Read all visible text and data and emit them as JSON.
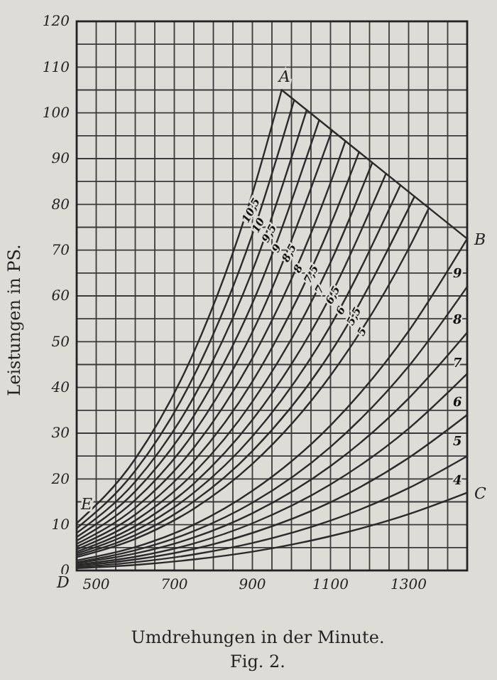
{
  "chart_data": {
    "type": "line",
    "xlabel": "Umdrehungen in der Minute.",
    "ylabel": "Leistungen in PS.",
    "annotations": [
      "Fig. 2.",
      {
        "text": "A",
        "x": 975,
        "y": 105
      },
      {
        "text": "B",
        "x": 1450,
        "y": 72.5
      },
      {
        "text": "C",
        "x": 1450,
        "y": 17
      },
      {
        "text": "D",
        "x": 450,
        "y": 0
      },
      {
        "text": "E",
        "x": 450,
        "y": 10.3
      }
    ],
    "xlim": [
      450,
      1450
    ],
    "xticks": [
      {
        "value": 450,
        "label": null
      },
      500,
      {
        "value": 550,
        "label": null
      },
      {
        "value": 600,
        "label": null
      },
      {
        "value": 650,
        "label": null
      },
      700,
      {
        "value": 750,
        "label": null
      },
      {
        "value": 800,
        "label": null
      },
      {
        "value": 850,
        "label": null
      },
      900,
      {
        "value": 950,
        "label": null
      },
      {
        "value": 1000,
        "label": null
      },
      {
        "value": 1050,
        "label": null
      },
      1100,
      {
        "value": 1150,
        "label": null
      },
      {
        "value": 1200,
        "label": null
      },
      {
        "value": 1250,
        "label": null
      },
      1300,
      {
        "value": 1350,
        "label": null
      },
      {
        "value": 1400,
        "label": null
      },
      {
        "value": 1450,
        "label": null
      }
    ],
    "ylim": [
      0,
      120
    ],
    "yticks": [
      0,
      {
        "value": 5,
        "label": null
      },
      10,
      {
        "value": 15,
        "label": null
      },
      20,
      {
        "value": 25,
        "label": null
      },
      30,
      {
        "value": 35,
        "label": null
      },
      40,
      {
        "value": 45,
        "label": null
      },
      50,
      {
        "value": 55,
        "label": null
      },
      60,
      {
        "value": 65,
        "label": null
      },
      70,
      {
        "value": 75,
        "label": null
      },
      80,
      {
        "value": 85,
        "label": null
      },
      90,
      {
        "value": 95,
        "label": null
      },
      100,
      {
        "value": 105,
        "label": null
      },
      110,
      {
        "value": 115,
        "label": null
      },
      120
    ],
    "grid": true,
    "legend": false,
    "marker": "none",
    "line_style": "solid",
    "series": [
      {
        "name": "10,5",
        "color": "#2a2a2a",
        "x": [
          450,
          600,
          750,
          900,
          975
        ],
        "values": [
          10.3,
          24.4,
          47.7,
          82.4,
          105
        ]
      },
      {
        "name": "10",
        "color": "#2a2a2a",
        "x": [
          450,
          600,
          750,
          900,
          1007
        ],
        "values": [
          9.2,
          21.8,
          42.5,
          73.5,
          102.8
        ]
      },
      {
        "name": "9,5",
        "color": "#2a2a2a",
        "x": [
          450,
          600,
          750,
          900,
          1039
        ],
        "values": [
          8.2,
          19.4,
          37.9,
          65.5,
          100.6
        ]
      },
      {
        "name": "9",
        "color": "#2a2a2a",
        "x": [
          450,
          600,
          750,
          900,
          1071
        ],
        "values": [
          7.3,
          17.3,
          33.8,
          58.4,
          98.4
        ]
      },
      {
        "name": "8,5",
        "color": "#2a2a2a",
        "x": [
          450,
          600,
          750,
          900,
          1104
        ],
        "values": [
          6.5,
          15.4,
          30.1,
          52.1,
          96.2
        ]
      },
      {
        "name": "8",
        "color": "#2a2a2a",
        "x": [
          450,
          600,
          750,
          900,
          1100,
          1138
        ],
        "values": [
          5.8,
          13.7,
          26.8,
          46.4,
          84.7,
          93.8
        ]
      },
      {
        "name": "7,5",
        "color": "#2a2a2a",
        "x": [
          450,
          600,
          750,
          900,
          1100,
          1173
        ],
        "values": [
          5.2,
          12.2,
          23.9,
          41.3,
          75.5,
          91.4
        ]
      },
      {
        "name": "7",
        "color": "#2a2a2a",
        "x": [
          450,
          600,
          750,
          900,
          1100,
          1207
        ],
        "values": [
          4.6,
          10.9,
          21.3,
          36.9,
          67.3,
          89.1
        ]
      },
      {
        "name": "6,5",
        "color": "#2a2a2a",
        "x": [
          450,
          600,
          750,
          900,
          1100,
          1242
        ],
        "values": [
          4.1,
          9.7,
          19.0,
          32.9,
          60.0,
          86.7
        ]
      },
      {
        "name": "6",
        "color": "#2a2a2a",
        "x": [
          450,
          600,
          750,
          900,
          1100,
          1279
        ],
        "values": [
          3.7,
          8.7,
          17.0,
          29.3,
          53.5,
          84.2
        ]
      },
      {
        "name": "5,5",
        "color": "#2a2a2a",
        "x": [
          450,
          600,
          750,
          900,
          1100,
          1315
        ],
        "values": [
          3.3,
          7.7,
          15.1,
          26.1,
          47.6,
          81.7
        ]
      },
      {
        "name": "5",
        "color": "#2a2a2a",
        "x": [
          450,
          600,
          750,
          900,
          1100,
          1300,
          1352
        ],
        "values": [
          2.9,
          6.9,
          13.5,
          23.3,
          42.6,
          70.3,
          79.2
        ]
      },
      {
        "name": "9",
        "color": "#2a2a2a",
        "x": [
          450,
          600,
          750,
          900,
          1100,
          1300,
          1450
        ],
        "values": [
          2.2,
          5.1,
          10.0,
          17.4,
          31.7,
          52.3,
          72.5
        ]
      },
      {
        "name": "8",
        "color": "#2a2a2a",
        "x": [
          450,
          600,
          750,
          900,
          1100,
          1300,
          1450
        ],
        "values": [
          1.8,
          4.4,
          8.6,
          14.8,
          27.0,
          44.6,
          62
        ]
      },
      {
        "name": "7",
        "color": "#2a2a2a",
        "x": [
          450,
          600,
          750,
          900,
          1100,
          1300,
          1450
        ],
        "values": [
          1.6,
          3.7,
          7.2,
          12.5,
          22.8,
          37.6,
          52
        ]
      },
      {
        "name": "6",
        "color": "#2a2a2a",
        "x": [
          450,
          600,
          750,
          900,
          1100,
          1300,
          1450
        ],
        "values": [
          1.3,
          3.0,
          5.9,
          10.3,
          18.8,
          31.0,
          43
        ]
      },
      {
        "name": "5",
        "color": "#2a2a2a",
        "x": [
          450,
          600,
          750,
          900,
          1100,
          1300,
          1450
        ],
        "values": [
          1.0,
          2.4,
          4.7,
          8.2,
          14.9,
          24.6,
          34
        ]
      },
      {
        "name": "4",
        "color": "#2a2a2a",
        "x": [
          450,
          600,
          750,
          900,
          1100,
          1300,
          1450
        ],
        "values": [
          0.7,
          1.8,
          3.5,
          6.0,
          10.9,
          18.0,
          25
        ]
      },
      {
        "color": "#2a2a2a",
        "x": [
          450,
          600,
          750,
          900,
          1100,
          1300,
          1450
        ],
        "values": [
          0.5,
          1.2,
          2.4,
          4.1,
          7.5,
          12.3,
          17
        ]
      },
      {
        "color": "#2a2a2a",
        "x": [
          975,
          1450
        ],
        "values": [
          105,
          72.5
        ]
      }
    ]
  }
}
